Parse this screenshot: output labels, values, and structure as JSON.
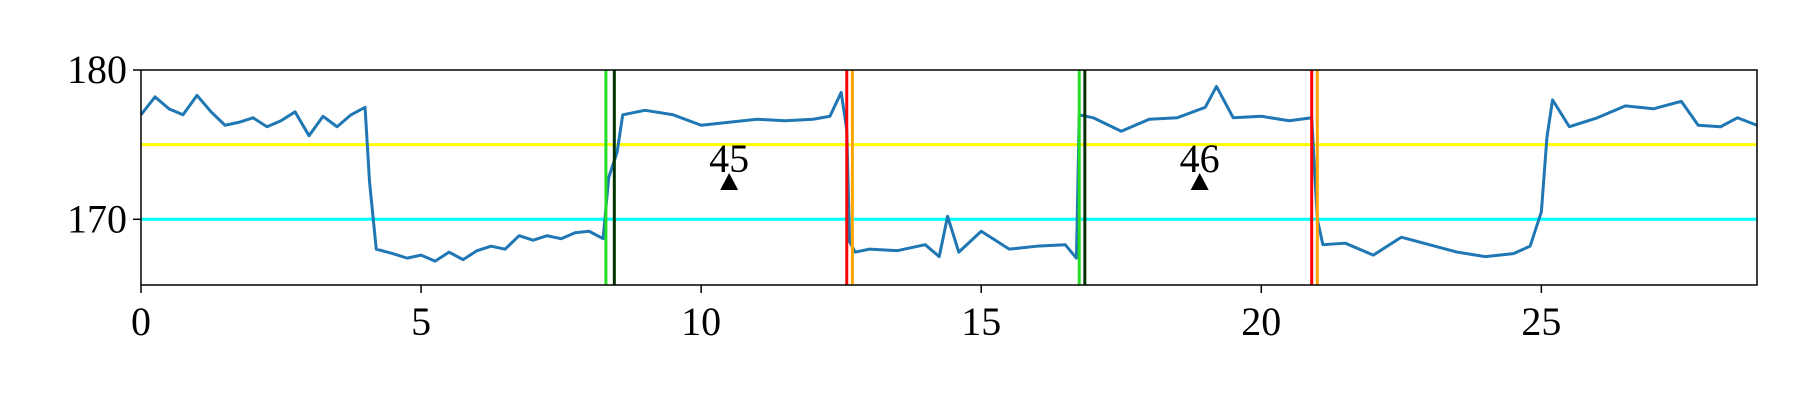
{
  "chart_data": {
    "type": "line",
    "x": [
      0,
      0.25,
      0.5,
      0.75,
      1,
      1.25,
      1.5,
      1.75,
      2,
      2.25,
      2.5,
      2.75,
      3,
      3.25,
      3.5,
      3.75,
      4.0,
      4.08,
      4.2,
      4.5,
      4.75,
      5,
      5.25,
      5.5,
      5.75,
      6,
      6.25,
      6.5,
      6.75,
      7,
      7.25,
      7.5,
      7.75,
      8,
      8.25,
      8.35,
      8.5,
      8.6,
      9,
      9.5,
      10,
      10.5,
      11,
      11.5,
      12,
      12.3,
      12.5,
      12.6,
      12.65,
      12.75,
      13,
      13.5,
      14,
      14.25,
      14.4,
      14.6,
      15,
      15.5,
      16,
      16.5,
      16.7,
      16.75,
      17,
      17.5,
      18,
      18.5,
      19,
      19.2,
      19.5,
      20,
      20.5,
      20.9,
      21.0,
      21.1,
      21.5,
      22,
      22.5,
      23,
      23.5,
      24,
      24.5,
      24.8,
      25.0,
      25.1,
      25.2,
      25.5,
      26,
      26.5,
      27,
      27.5,
      27.8,
      28.2,
      28.5,
      28.85
    ],
    "series": [
      {
        "color": "#1f77b4",
        "values": [
          177.0,
          178.2,
          177.4,
          177.0,
          178.3,
          177.2,
          176.3,
          176.5,
          176.8,
          176.2,
          176.6,
          177.2,
          175.6,
          176.9,
          176.2,
          177.0,
          177.5,
          172.5,
          168.0,
          167.7,
          167.4,
          167.6,
          167.2,
          167.8,
          167.3,
          167.9,
          168.2,
          168.0,
          168.9,
          168.6,
          168.9,
          168.7,
          169.1,
          169.2,
          168.7,
          172.8,
          174.5,
          177.0,
          177.3,
          177.0,
          176.3,
          176.5,
          176.7,
          176.6,
          176.7,
          176.9,
          178.5,
          176.0,
          168.5,
          167.8,
          168.0,
          167.9,
          168.3,
          167.5,
          170.2,
          167.8,
          169.2,
          168.0,
          168.2,
          168.3,
          167.4,
          177.0,
          176.8,
          175.9,
          176.7,
          176.8,
          177.5,
          178.9,
          176.8,
          176.9,
          176.6,
          176.8,
          170.0,
          168.3,
          168.4,
          167.6,
          168.8,
          168.3,
          167.8,
          167.5,
          167.7,
          168.2,
          170.5,
          175.5,
          178.0,
          176.2,
          176.8,
          177.6,
          177.4,
          177.9,
          176.3,
          176.2,
          176.8,
          176.3
        ]
      }
    ],
    "hlines": [
      {
        "y": 175,
        "color": "#ffff00"
      },
      {
        "y": 170,
        "color": "#00ffff"
      }
    ],
    "vlines": [
      {
        "x": 8.3,
        "color": "#22dd22"
      },
      {
        "x": 8.45,
        "color": "#003300"
      },
      {
        "x": 12.6,
        "color": "#ff0000"
      },
      {
        "x": 12.7,
        "color": "#ffa500"
      },
      {
        "x": 16.75,
        "color": "#22dd22"
      },
      {
        "x": 16.85,
        "color": "#003300"
      },
      {
        "x": 20.9,
        "color": "#ff0000"
      },
      {
        "x": 21.0,
        "color": "#ffa500"
      }
    ],
    "annotations": [
      {
        "x": 10.5,
        "y": 172.5,
        "label": "45"
      },
      {
        "x": 18.9,
        "y": 172.5,
        "label": "46"
      }
    ],
    "xlim": [
      0,
      28.85
    ],
    "ylim": [
      165.6,
      180
    ],
    "xticks": [
      0,
      5,
      10,
      15,
      20,
      25
    ],
    "yticks": [
      170,
      180
    ]
  }
}
